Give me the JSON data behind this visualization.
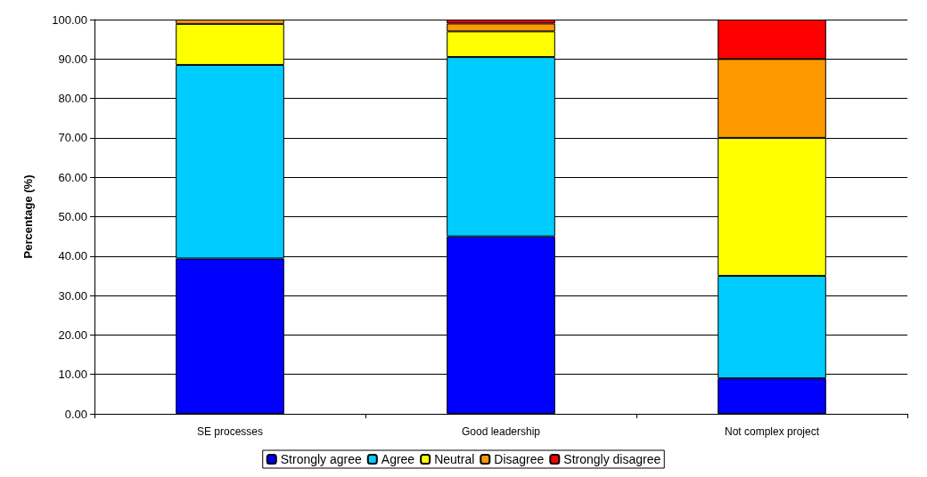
{
  "chart_data": {
    "type": "bar",
    "stacked": true,
    "ylabel": "Percentage (%)",
    "categories": [
      "SE processes",
      "Good leadership",
      "Not complex project"
    ],
    "series": [
      {
        "name": "Strongly agree",
        "color": "#0000ff",
        "values": [
          39.4,
          45.0,
          9.0
        ]
      },
      {
        "name": "Agree",
        "color": "#00ccff",
        "values": [
          49.1,
          45.5,
          26.0
        ]
      },
      {
        "name": "Neutral",
        "color": "#ffff00",
        "values": [
          10.4,
          6.5,
          35.0
        ]
      },
      {
        "name": "Disagree",
        "color": "#ff9900",
        "values": [
          1.1,
          2.0,
          20.0
        ]
      },
      {
        "name": "Strongly disagree",
        "color": "#ff0000",
        "values": [
          null,
          1.0,
          10.0
        ]
      }
    ],
    "ylim": [
      0,
      100
    ],
    "yticks": [
      {
        "value": 0,
        "label": "0.00"
      },
      {
        "value": 10,
        "label": "10.00"
      },
      {
        "value": 20,
        "label": "20.00"
      },
      {
        "value": 30,
        "label": "30.00"
      },
      {
        "value": 40,
        "label": "40.00"
      },
      {
        "value": 50,
        "label": "50.00"
      },
      {
        "value": 60,
        "label": "60.00"
      },
      {
        "value": 70,
        "label": "70.00"
      },
      {
        "value": 80,
        "label": "80.00"
      },
      {
        "value": 90,
        "label": "90.00"
      },
      {
        "value": 100,
        "label": "100.00"
      }
    ],
    "grid": "y",
    "legend": "bottom"
  }
}
